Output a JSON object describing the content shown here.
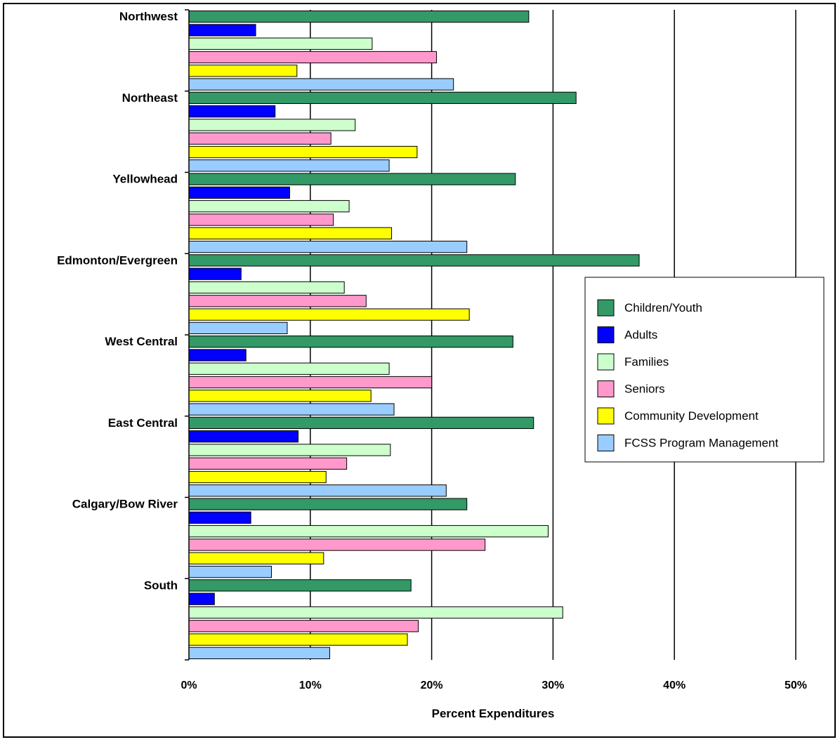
{
  "chart_data": {
    "type": "bar",
    "orientation": "horizontal",
    "xlabel": "Percent Expenditures",
    "xlim": [
      0,
      50
    ],
    "xticks": [
      "0%",
      "10%",
      "20%",
      "30%",
      "40%",
      "50%"
    ],
    "categories": [
      "Northwest",
      "Northeast",
      "Yellowhead",
      "Edmonton/Evergreen",
      "West Central",
      "East Central",
      "Calgary/Bow River",
      "South"
    ],
    "series": [
      {
        "name": "Children/Youth",
        "color": "#339966",
        "values": [
          28.0,
          31.9,
          26.9,
          37.1,
          26.7,
          28.4,
          22.9,
          18.3
        ]
      },
      {
        "name": "Adults",
        "color": "#0000FF",
        "values": [
          5.5,
          7.1,
          8.3,
          4.3,
          4.7,
          9.0,
          5.1,
          2.1
        ]
      },
      {
        "name": "Families",
        "color": "#CCFFCC",
        "values": [
          15.1,
          13.7,
          13.2,
          12.8,
          16.5,
          16.6,
          29.6,
          30.8
        ]
      },
      {
        "name": "Seniors",
        "color": "#FF99CC",
        "values": [
          20.4,
          11.7,
          11.9,
          14.6,
          20.0,
          13.0,
          24.4,
          18.9
        ]
      },
      {
        "name": "Community Development",
        "color": "#FFFF00",
        "values": [
          8.9,
          18.8,
          16.7,
          23.1,
          15.0,
          11.3,
          11.1,
          18.0
        ]
      },
      {
        "name": "FCSS Program Management",
        "color": "#99CCFF",
        "values": [
          21.8,
          16.5,
          22.9,
          8.1,
          16.9,
          21.2,
          6.8,
          11.6
        ]
      }
    ],
    "grid": true,
    "legend_position": "right"
  }
}
